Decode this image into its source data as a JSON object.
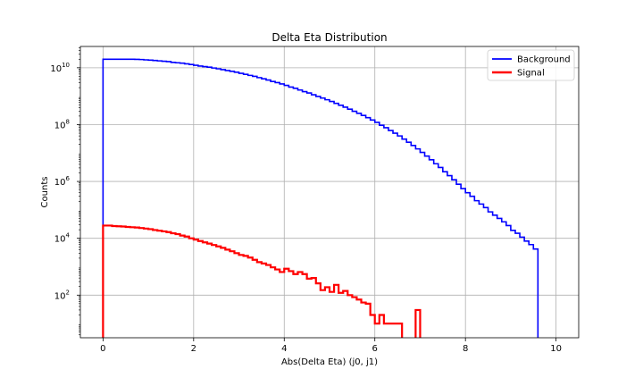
{
  "chart_data": {
    "type": "line",
    "title": "Delta Eta Distribution",
    "xlabel": "Abs(Delta Eta) (j0, j1)",
    "ylabel": "Counts",
    "xlim": [
      -0.5,
      10.5
    ],
    "ylim_log10": [
      0.5,
      10.75
    ],
    "y_scale": "log",
    "grid": true,
    "legend_position": "top-right",
    "x_ticks": [
      0,
      2,
      4,
      6,
      8,
      10
    ],
    "x_tick_labels": [
      "0",
      "2",
      "4",
      "6",
      "8",
      "10"
    ],
    "y_ticks_log10": [
      2,
      4,
      6,
      8,
      10
    ],
    "y_tick_labels": [
      "10",
      "10",
      "10",
      "10",
      "10"
    ],
    "y_tick_exponents": [
      "2",
      "4",
      "6",
      "8",
      "10"
    ],
    "series": [
      {
        "name": "Background",
        "color": "#0000ff",
        "x": [
          0,
          0.1,
          0.2,
          0.3,
          0.4,
          0.5,
          0.6,
          0.7,
          0.8,
          0.9,
          1.0,
          1.1,
          1.2,
          1.3,
          1.4,
          1.5,
          1.6,
          1.7,
          1.8,
          1.9,
          2.0,
          2.1,
          2.2,
          2.3,
          2.4,
          2.5,
          2.6,
          2.7,
          2.8,
          2.9,
          3.0,
          3.1,
          3.2,
          3.3,
          3.4,
          3.5,
          3.6,
          3.7,
          3.8,
          3.9,
          4.0,
          4.1,
          4.2,
          4.3,
          4.4,
          4.5,
          4.6,
          4.7,
          4.8,
          4.9,
          5.0,
          5.1,
          5.2,
          5.3,
          5.4,
          5.5,
          5.6,
          5.7,
          5.8,
          5.9,
          6.0,
          6.1,
          6.2,
          6.3,
          6.4,
          6.5,
          6.6,
          6.7,
          6.8,
          6.9,
          7.0,
          7.1,
          7.2,
          7.3,
          7.4,
          7.5,
          7.6,
          7.7,
          7.8,
          7.9,
          8.0,
          8.1,
          8.2,
          8.3,
          8.4,
          8.5,
          8.6,
          8.7,
          8.8,
          8.9,
          9.0,
          9.1,
          9.2,
          9.3,
          9.4,
          9.5,
          9.6,
          9.7
        ],
        "values": [
          20000000000.0,
          20000000000.0,
          20000000000.0,
          20000000000.0,
          20000000000.0,
          20000000000.0,
          20000000000.0,
          19800000000.0,
          19500000000.0,
          19000000000.0,
          18500000000.0,
          18000000000.0,
          17500000000.0,
          17000000000.0,
          16500000000.0,
          15500000000.0,
          15000000000.0,
          14500000000.0,
          13800000000.0,
          13000000000.0,
          12200000000.0,
          11500000000.0,
          11000000000.0,
          10500000000.0,
          9800000000.0,
          9200000000.0,
          8600000000.0,
          8000000000.0,
          7500000000.0,
          7000000000.0,
          6400000000.0,
          5900000000.0,
          5400000000.0,
          5000000000.0,
          4500000000.0,
          4100000000.0,
          3700000000.0,
          3300000000.0,
          3000000000.0,
          2700000000.0,
          2400000000.0,
          2100000000.0,
          1900000000.0,
          1650000000.0,
          1450000000.0,
          1300000000.0,
          1120000000.0,
          980000000.0,
          860000000.0,
          750000000.0,
          650000000.0,
          560000000.0,
          480000000.0,
          410000000.0,
          350000000.0,
          295000000.0,
          250000000.0,
          210000000.0,
          175000000.0,
          145000000.0,
          120000000.0,
          95000000.0,
          78000000.0,
          62000000.0,
          50000000.0,
          40000000.0,
          31000000.0,
          24000000.0,
          18500000.0,
          14000000.0,
          10500000.0,
          7800000.0,
          5800000.0,
          4200000.0,
          3100000.0,
          2200000.0,
          1600000.0,
          1150000.0,
          800000.0,
          560000.0,
          400000.0,
          300000.0,
          210000.0,
          160000.0,
          120000.0,
          85000.0,
          65000.0,
          50000.0,
          38000.0,
          28000.0,
          19000.0,
          15000.0,
          11000.0,
          8000.0,
          6000.0,
          4200.0,
          0,
          0
        ],
        "note_values": ""
      },
      {
        "name": "Signal",
        "color": "#ff0000",
        "x": [
          0,
          0.1,
          0.2,
          0.3,
          0.4,
          0.5,
          0.6,
          0.7,
          0.8,
          0.9,
          1.0,
          1.1,
          1.2,
          1.3,
          1.4,
          1.5,
          1.6,
          1.7,
          1.8,
          1.9,
          2.0,
          2.1,
          2.2,
          2.3,
          2.4,
          2.5,
          2.6,
          2.7,
          2.8,
          2.9,
          3.0,
          3.1,
          3.2,
          3.3,
          3.4,
          3.5,
          3.6,
          3.7,
          3.8,
          3.9,
          4.0,
          4.1,
          4.2,
          4.3,
          4.4,
          4.5,
          4.6,
          4.7,
          4.8,
          4.9,
          5.0,
          5.1,
          5.2,
          5.3,
          5.4,
          5.5,
          5.6,
          5.7,
          5.8,
          5.9,
          6.0,
          6.1,
          6.2,
          6.3,
          6.4,
          6.5,
          6.6,
          6.7,
          6.8,
          6.9,
          7.0
        ],
        "values": [
          28000,
          28000,
          27000,
          26500,
          26000,
          25000,
          24500,
          24000,
          23000,
          22000,
          21000,
          19500,
          18500,
          17500,
          16500,
          15000,
          14000,
          12500,
          11500,
          10000,
          9000,
          8000,
          7200,
          6500,
          5800,
          5200,
          4600,
          4000,
          3500,
          3000,
          2600,
          2400,
          2100,
          1750,
          1450,
          1300,
          1150,
          950,
          800,
          650,
          850,
          700,
          550,
          650,
          550,
          380,
          400,
          260,
          150,
          190,
          130,
          230,
          120,
          140,
          100,
          85,
          70,
          55,
          50,
          20,
          10,
          20,
          10,
          10,
          10,
          10,
          0,
          0,
          0,
          30,
          0
        ]
      }
    ]
  }
}
